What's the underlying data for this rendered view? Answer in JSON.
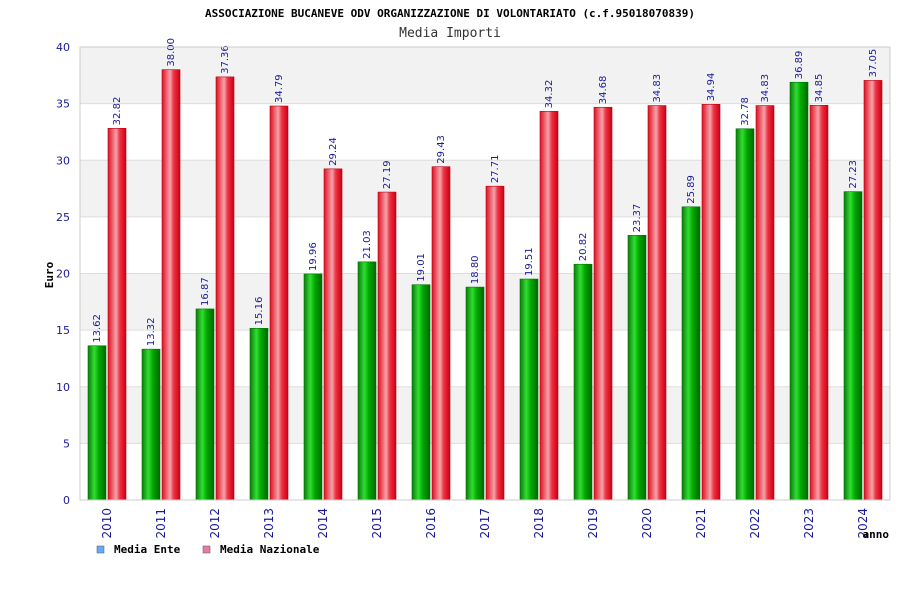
{
  "chart_data": {
    "type": "bar",
    "title": "ASSOCIAZIONE BUCANEVE ODV ORGANIZZAZIONE DI VOLONTARIATO (c.f.95018070839)",
    "subtitle": "Media Importi",
    "xlabel": "anno",
    "ylabel": "Euro",
    "ylim": [
      0,
      40
    ],
    "yticks": [
      0,
      5,
      10,
      15,
      20,
      25,
      30,
      35,
      40
    ],
    "grid": true,
    "legend_position": "bottom-left",
    "categories": [
      "2010",
      "2011",
      "2012",
      "2013",
      "2014",
      "2015",
      "2016",
      "2017",
      "2018",
      "2019",
      "2020",
      "2021",
      "2022",
      "2023",
      "2024"
    ],
    "series": [
      {
        "name": "Media Ente",
        "color": "#00aa00",
        "legend_color": "#66aaff",
        "values": [
          13.62,
          13.32,
          16.87,
          15.16,
          19.96,
          21.03,
          19.01,
          18.8,
          19.51,
          20.82,
          23.37,
          25.89,
          32.78,
          36.89,
          27.23
        ],
        "labels": [
          "13.62",
          "13.32",
          "16.87",
          "15.16",
          "19.96",
          "21.03",
          "19.01",
          "18.80",
          "19.51",
          "20.82",
          "23.37",
          "25.89",
          "32.78",
          "36.89",
          "27.23"
        ]
      },
      {
        "name": "Media Nazionale",
        "color": "#e8182a",
        "legend_color": "#e87aa8",
        "values": [
          32.82,
          38.0,
          37.36,
          34.79,
          29.24,
          27.19,
          29.43,
          27.71,
          34.32,
          34.68,
          34.83,
          34.94,
          34.83,
          34.85,
          37.05
        ],
        "labels": [
          "32.82",
          "38.00",
          "37.36",
          "34.79",
          "29.24",
          "27.19",
          "29.43",
          "27.71",
          "34.32",
          "34.68",
          "34.83",
          "34.94",
          "34.83",
          "34.85",
          "37.05"
        ]
      }
    ]
  }
}
